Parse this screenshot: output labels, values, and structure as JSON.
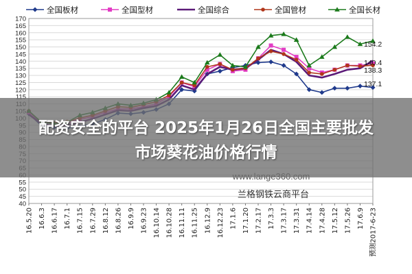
{
  "overlay": {
    "title_line1": "配资安全的平台  2025年1月26日全国主要批发",
    "title_line2": "市场葵花油价格行情",
    "colors": {
      "banner": "#6e6e6e",
      "text": "#ffffff"
    }
  },
  "watermarks": {
    "url": "www.lange360.com",
    "platform": "兰格钢铁云商平台"
  },
  "chart_data": {
    "type": "line",
    "title": "",
    "xlabel": "",
    "ylabel": "",
    "ylim": [
      40,
      170
    ],
    "yticks": [
      40,
      45,
      50,
      55,
      60,
      65,
      70,
      75,
      80,
      85,
      90,
      95,
      100,
      105,
      110,
      115,
      120,
      125,
      130,
      135,
      140,
      145,
      150,
      155,
      160,
      165,
      170
    ],
    "grid": true,
    "legend_position": "top",
    "x_tick_labels": [
      "16.5.20",
      "16.6.3",
      "16.6.17",
      "16.7.1",
      "16.7.15",
      "16.7.29",
      "16.8.12",
      "16.8.26",
      "16.9.9",
      "16.9.23",
      "16.10.14",
      "16.10.28",
      "16.11.11",
      "16.11.25",
      "16.12.9",
      "16.12.23",
      "17.1.6",
      "17.1.20",
      "17.2.17",
      "17.3.3",
      "17.3.17",
      "17.3.31",
      "17.4.14",
      "17.4.28",
      "17.5.12",
      "17.5.26",
      "17.6.9",
      "预测2017-6-23"
    ],
    "annotations": [
      {
        "text": "154.2",
        "series": "全国长材"
      },
      {
        "text": "140.4",
        "series": "全国综合"
      },
      {
        "text": "138.3",
        "series": "全国型材"
      },
      {
        "text": "137.1",
        "series": "全国管材"
      }
    ],
    "series": [
      {
        "name": "全国板材",
        "color": "#1f3a8c",
        "marker": "diamond",
        "values": [
          103,
          94.5,
          93.5,
          93,
          94,
          96,
          99,
          103.5,
          103,
          104,
          106,
          110,
          120,
          119,
          131,
          133,
          135.5,
          137,
          139,
          139.5,
          137,
          131,
          120,
          118,
          121,
          121,
          122.5,
          121.5
        ]
      },
      {
        "name": "全国型材",
        "color": "#e23cc4",
        "marker": "square",
        "values": [
          104,
          97,
          96,
          96.5,
          99,
          101,
          104,
          106.5,
          106.5,
          108,
          110,
          115,
          125,
          122,
          134,
          138,
          133,
          134,
          142,
          151,
          148,
          143,
          135,
          132,
          134,
          137,
          137,
          138.3
        ]
      },
      {
        "name": "全国综合",
        "color": "#5b1a78",
        "marker": "none",
        "values": [
          102.5,
          96,
          94.5,
          95,
          97,
          99.5,
          102.5,
          105.5,
          105,
          107,
          108.5,
          113,
          123,
          120,
          131,
          136,
          134,
          135,
          141,
          148,
          145,
          139.5,
          130,
          128.5,
          131,
          134,
          135,
          140.4
        ]
      },
      {
        "name": "全国管材",
        "color": "#b0361a",
        "marker": "circle",
        "values": [
          105,
          97,
          96.5,
          97.5,
          100,
          102,
          105,
          108,
          107.5,
          109.5,
          111.5,
          116,
          125,
          123,
          136,
          138,
          134,
          135,
          142,
          147,
          145,
          141,
          132,
          131,
          134,
          137,
          136.5,
          137.1
        ]
      },
      {
        "name": "全国长材",
        "color": "#1b7a1b",
        "marker": "triangle",
        "values": [
          105,
          97,
          96,
          97,
          102,
          104,
          107,
          110,
          109,
          110.5,
          113,
          118,
          129,
          125,
          139,
          144.5,
          137,
          136,
          150,
          158,
          159,
          155,
          137,
          143,
          150,
          157,
          152,
          154.2
        ]
      }
    ]
  }
}
